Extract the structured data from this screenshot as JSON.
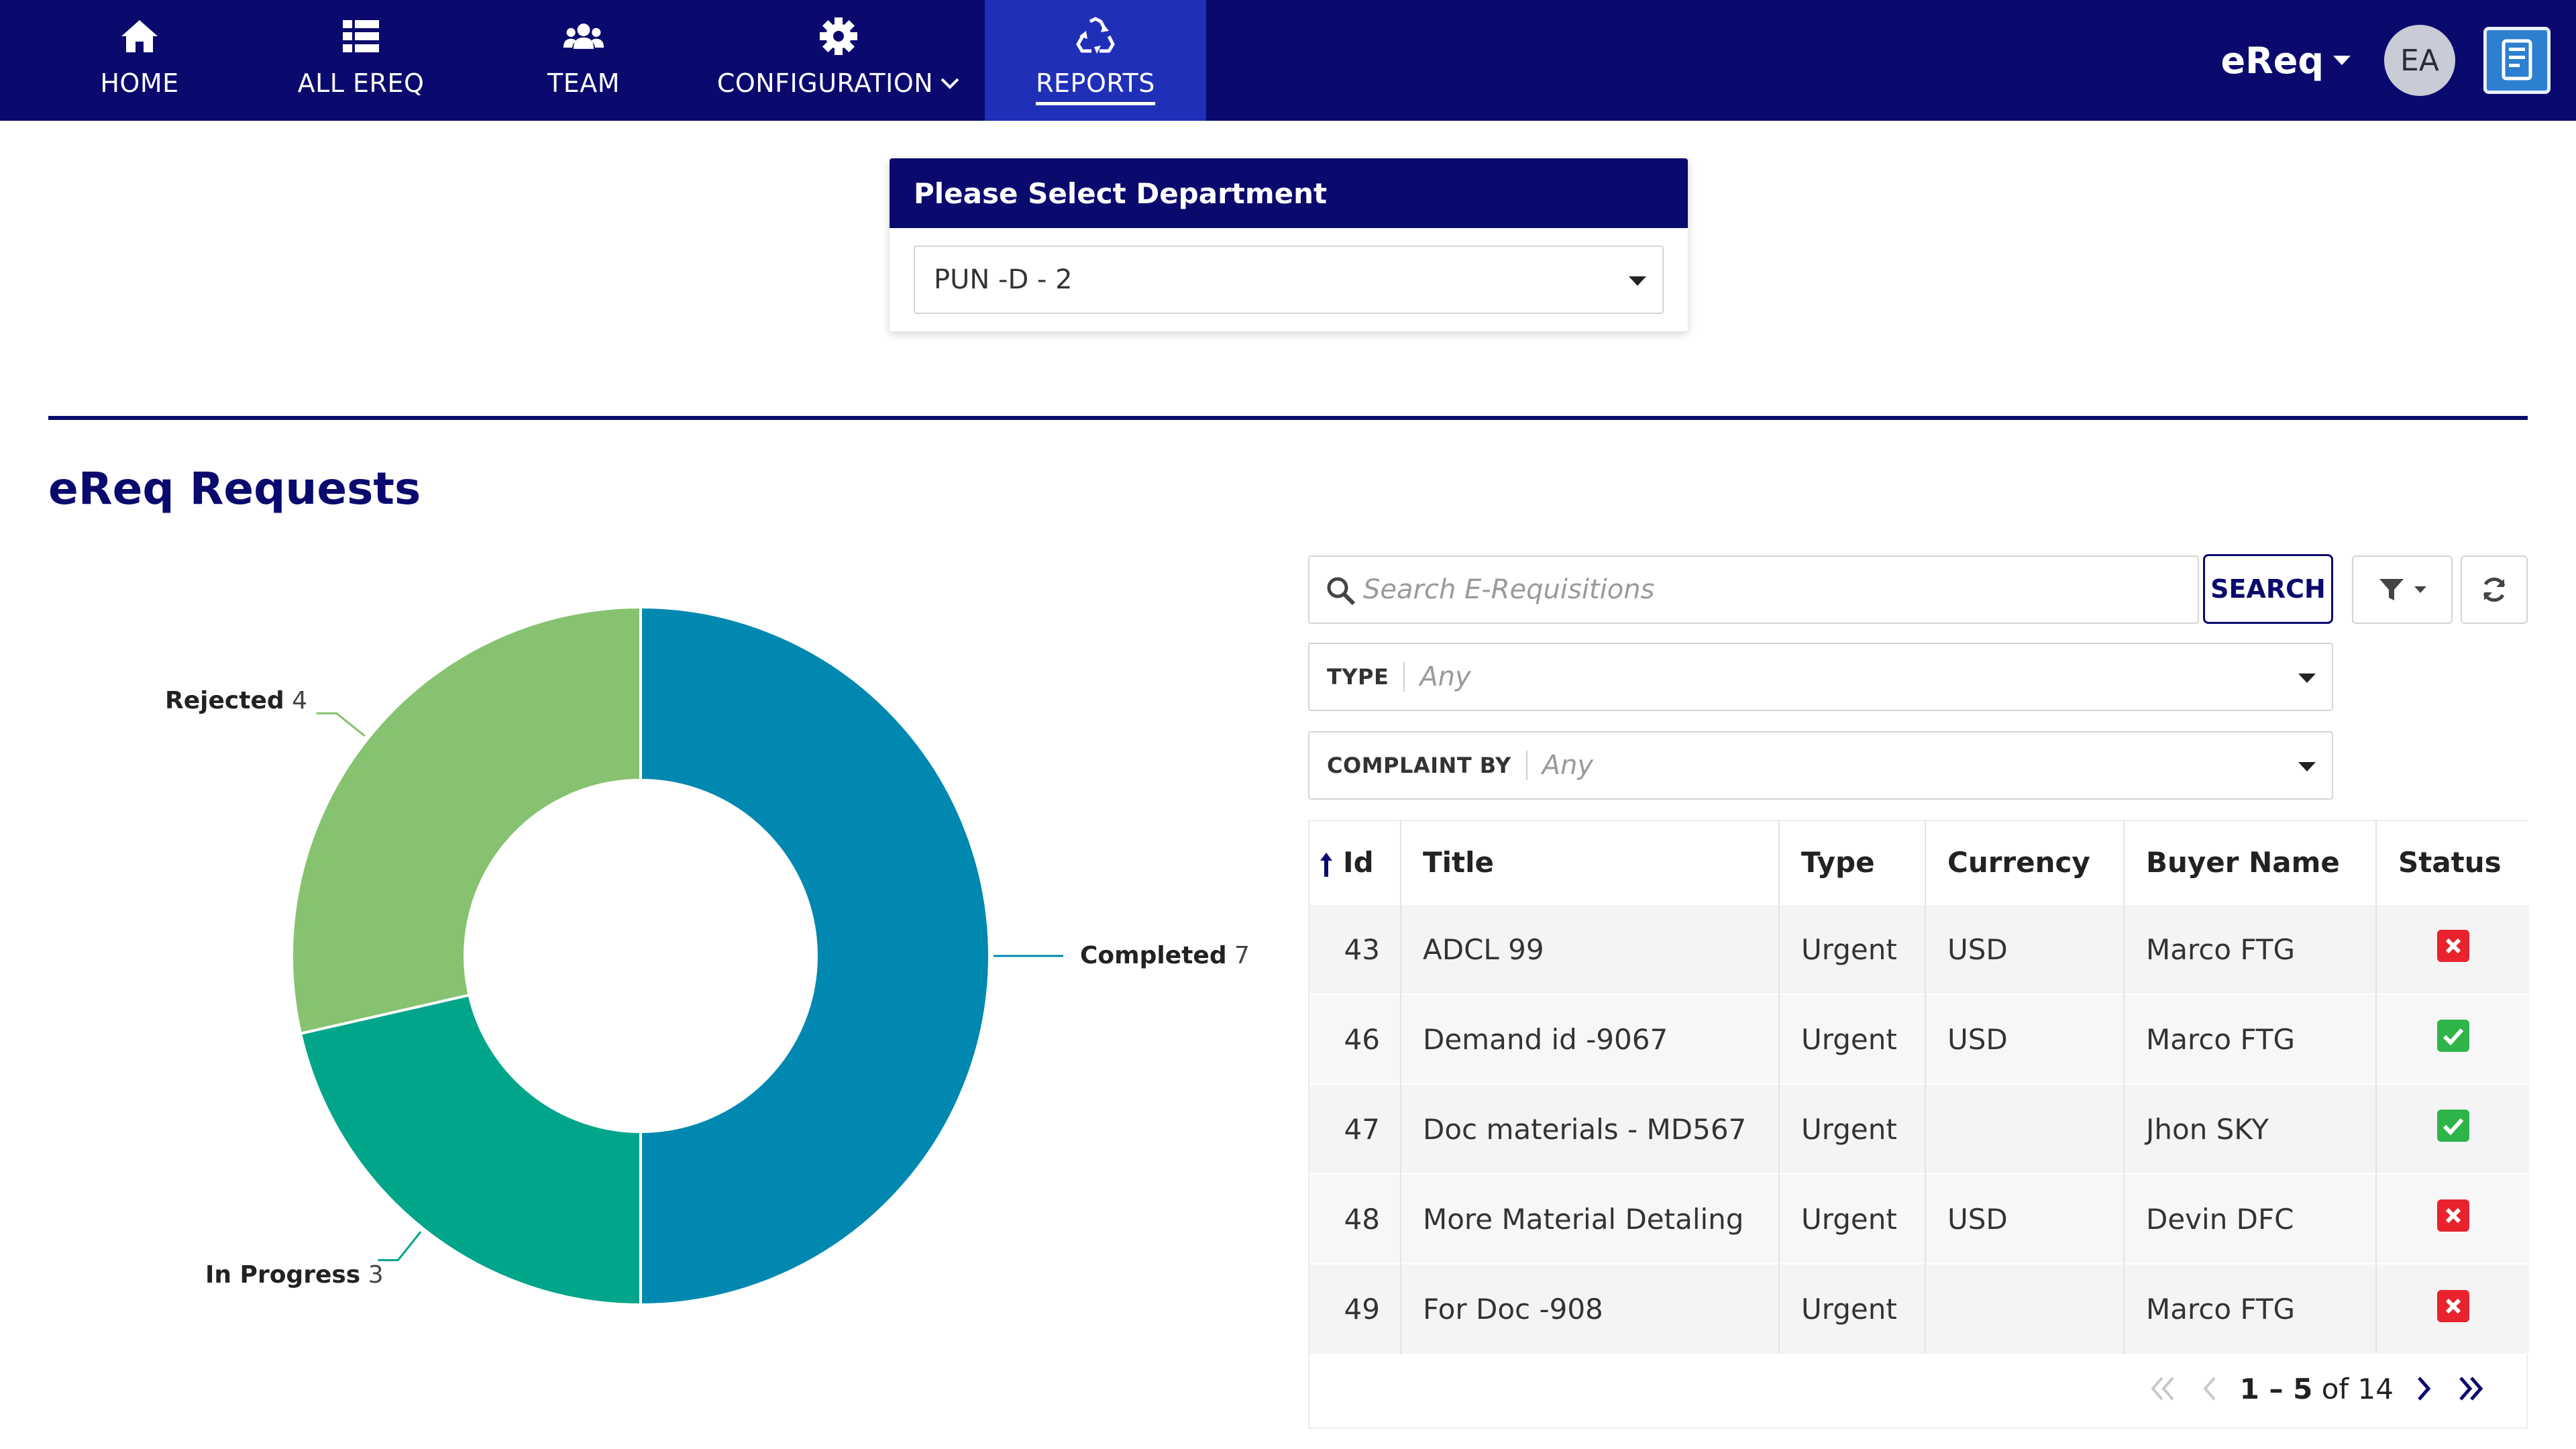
{
  "nav": {
    "items": [
      {
        "label": "HOME",
        "icon": "home-icon"
      },
      {
        "label": "ALL EREQ",
        "icon": "list-icon"
      },
      {
        "label": "TEAM",
        "icon": "team-icon"
      },
      {
        "label": "CONFIGURATION",
        "icon": "gear-icon"
      },
      {
        "label": "REPORTS",
        "icon": "recycle-icon"
      }
    ],
    "active": "REPORTS",
    "app_name": "eReq",
    "avatar_initials": "EA",
    "colors": {
      "bar": "#0a0a6e",
      "active": "#1f2fb8"
    }
  },
  "department": {
    "header": "Please Select Department",
    "selected": "PUN -D - 2"
  },
  "section_title": "eReq Requests",
  "chart_data": {
    "type": "pie",
    "style": "donut",
    "title": "",
    "slices": [
      {
        "label": "Completed",
        "value": 7,
        "color": "#0088b0"
      },
      {
        "label": "In Progress",
        "value": 3,
        "color": "#00a58a"
      },
      {
        "label": "Rejected",
        "value": 4,
        "color": "#86c270"
      }
    ],
    "total": 14,
    "legend": "labels-outside"
  },
  "search": {
    "placeholder": "Search E-Requisitions",
    "button_label": "SEARCH"
  },
  "filters": [
    {
      "label": "TYPE",
      "value": "Any"
    },
    {
      "label": "COMPLAINT BY",
      "value": "Any"
    }
  ],
  "table": {
    "columns": [
      "Id",
      "Title",
      "Type",
      "Currency",
      "Buyer Name",
      "Status"
    ],
    "sort_column": "Id",
    "sort_dir": "asc",
    "rows": [
      {
        "id": "43",
        "title": "ADCL 99",
        "type": "Urgent",
        "currency": "USD",
        "buyer": "Marco FTG",
        "status": "rejected"
      },
      {
        "id": "46",
        "title": "Demand id -9067",
        "type": "Urgent",
        "currency": "USD",
        "buyer": "Marco FTG",
        "status": "approved"
      },
      {
        "id": "47",
        "title": "Doc materials - MD567",
        "type": "Urgent",
        "currency": "",
        "buyer": "Jhon SKY",
        "status": "approved"
      },
      {
        "id": "48",
        "title": "More Material Detaling",
        "type": "Urgent",
        "currency": "USD",
        "buyer": "Devin DFC",
        "status": "rejected"
      },
      {
        "id": "49",
        "title": "For Doc -908",
        "type": "Urgent",
        "currency": "",
        "buyer": "Marco FTG",
        "status": "rejected"
      }
    ]
  },
  "pagination": {
    "range": "1 – 5",
    "of_label": "of",
    "total": "14"
  }
}
